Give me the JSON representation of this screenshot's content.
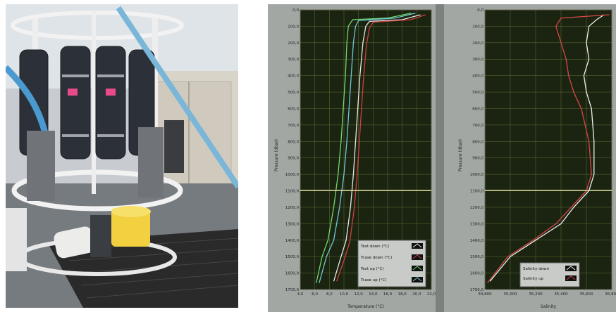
{
  "photo": {
    "subject": "ctd-rosette-sampler"
  },
  "temperature_plot": {
    "ylabel": "Pressure (dbar)",
    "xlabel": "Temperature (°C)",
    "y_ticks": [
      "0,0",
      "100,0",
      "200,0",
      "300,0",
      "400,0",
      "500,0",
      "600,0",
      "700,0",
      "800,0",
      "900,0",
      "1000,0",
      "1100,0",
      "1200,0",
      "1300,0",
      "1400,0",
      "1500,0",
      "1600,0",
      "1700,0"
    ],
    "x_ticks": [
      "4,0",
      "6,0",
      "8,0",
      "10,0",
      "12,0",
      "14,0",
      "16,0",
      "18,0",
      "20,0",
      "22,0"
    ],
    "legend": [
      "Text down (°C)",
      "Tcase down (°C)",
      "Text up (°C)",
      "Tcase up (°C)"
    ],
    "colors": {
      "text_down": "#e8e8e8",
      "tcase_down": "#d04040",
      "text_up": "#70d870",
      "tcase_up": "#70c8d8",
      "plot_bg": "#1b2410",
      "grid": "#8ca050",
      "cursor": "#e0e0a0"
    }
  },
  "salinity_plot": {
    "ylabel": "Pressure (dbar)",
    "xlabel": "Salinity",
    "y_ticks": [
      "0,0",
      "100,0",
      "200,0",
      "300,0",
      "400,0",
      "500,0",
      "600,0",
      "700,0",
      "800,0",
      "900,0",
      "1000,0",
      "1100,0",
      "1200,0",
      "1300,0",
      "1400,0",
      "1500,0",
      "1600,0",
      "1700,0"
    ],
    "x_ticks": [
      "34,800",
      "35,000",
      "35,200",
      "35,400",
      "35,600",
      "35,800"
    ],
    "legend": [
      "Salinity down",
      "Salinity up"
    ],
    "colors": {
      "sal_down": "#f0f0f0",
      "sal_up": "#d84848"
    }
  },
  "chart_data": [
    {
      "type": "line",
      "xlabel": "Temperature (°C)",
      "ylabel": "Pressure (dbar)",
      "xlim": [
        4,
        22
      ],
      "ylim": [
        1700,
        0
      ],
      "grid": true,
      "legend_position": "bottom-right",
      "series": [
        {
          "name": "Text down (°C)",
          "x": [
            20.5,
            18.0,
            13.5,
            13.0,
            12.6,
            12.2,
            11.9,
            11.6,
            11.3,
            10.9,
            10.3,
            9.6,
            8.6
          ],
          "y": [
            30,
            60,
            70,
            100,
            200,
            400,
            600,
            800,
            1000,
            1200,
            1400,
            1500,
            1650
          ]
        },
        {
          "name": "Tcase down (°C)",
          "x": [
            21.2,
            19.2,
            14.0,
            13.5,
            13.1,
            12.7,
            12.4,
            12.1,
            11.8,
            11.4,
            10.8,
            10.1,
            9.0
          ],
          "y": [
            30,
            60,
            75,
            110,
            210,
            410,
            610,
            810,
            1010,
            1210,
            1410,
            1510,
            1650
          ]
        },
        {
          "name": "Text up (°C)",
          "x": [
            19.2,
            16.0,
            11.2,
            10.6,
            10.4,
            10.2,
            9.9,
            9.6,
            9.2,
            8.6,
            7.8,
            7.0,
            6.2
          ],
          "y": [
            20,
            50,
            60,
            100,
            200,
            400,
            600,
            800,
            1000,
            1200,
            1400,
            1500,
            1660
          ]
        },
        {
          "name": "Tcase up (°C)",
          "x": [
            19.8,
            17.0,
            12.0,
            11.6,
            11.3,
            11.0,
            10.7,
            10.4,
            10.0,
            9.4,
            8.6,
            7.6,
            6.6
          ],
          "y": [
            20,
            50,
            65,
            100,
            200,
            400,
            600,
            800,
            1000,
            1200,
            1400,
            1500,
            1660
          ]
        }
      ]
    },
    {
      "type": "line",
      "xlabel": "Salinity",
      "ylabel": "Pressure (dbar)",
      "xlim": [
        34.8,
        35.8
      ],
      "ylim": [
        1700,
        0
      ],
      "grid": true,
      "legend_position": "bottom-right",
      "series": [
        {
          "name": "Salinity down",
          "x": [
            35.74,
            35.68,
            35.62,
            35.6,
            35.62,
            35.58,
            35.6,
            35.64,
            35.66,
            35.66,
            35.62,
            35.5,
            35.4,
            35.2,
            35.0,
            34.84
          ],
          "y": [
            30,
            60,
            100,
            200,
            300,
            400,
            500,
            600,
            800,
            1000,
            1100,
            1200,
            1300,
            1400,
            1500,
            1650
          ]
        },
        {
          "name": "Salinity up",
          "x": [
            35.78,
            35.4,
            35.36,
            35.4,
            35.44,
            35.46,
            35.5,
            35.56,
            35.62,
            35.64,
            35.6,
            35.48,
            35.36,
            35.18,
            34.98,
            34.82
          ],
          "y": [
            30,
            50,
            100,
            200,
            300,
            400,
            500,
            600,
            800,
            1000,
            1100,
            1200,
            1300,
            1400,
            1500,
            1660
          ]
        }
      ]
    }
  ]
}
